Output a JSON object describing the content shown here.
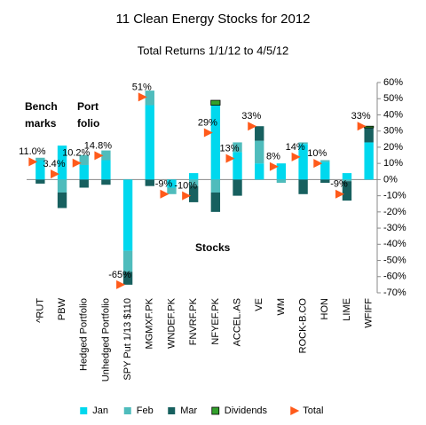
{
  "chart_data": {
    "type": "bar",
    "title": "11 Clean Energy Stocks for 2012",
    "subtitle": "Total Returns 1/1/12 to 4/5/12",
    "categories": [
      "^RUT",
      "PBW",
      "Hedged Portfolio",
      "Unhedged Portfolio",
      "SPY Put 1/13 $110",
      "MGMXF.PK",
      "WNDEF.PK",
      "FNVRF.PK",
      "NFYEF.PK",
      "ACCEL.AS",
      "VE",
      "WM",
      "ROCK-B.CO",
      "HON",
      "LIME",
      "WFIFF"
    ],
    "series": [
      {
        "name": "Jan",
        "color": "#00d8ee",
        "values": [
          12,
          21,
          9,
          12,
          -44,
          46,
          -5,
          4,
          46,
          17,
          10,
          10,
          22,
          11,
          4,
          23
        ]
      },
      {
        "name": "Feb",
        "color": "#4fbcbc",
        "values": [
          1.5,
          -8,
          6.2,
          6,
          -13,
          9,
          -4,
          -4,
          -8,
          6,
          14,
          -2,
          1,
          1,
          -1,
          0
        ]
      },
      {
        "name": "Mar",
        "color": "#17605f",
        "values": [
          -2.5,
          -9.6,
          -5,
          -3.2,
          -8,
          -4,
          0,
          -10,
          -12,
          -10,
          9,
          0,
          -9,
          -2,
          -12,
          9
        ]
      },
      {
        "name": "Dividends",
        "color": "#33a02c",
        "values": [
          0,
          0,
          0,
          0,
          0,
          0,
          0,
          0,
          3,
          0,
          0,
          0,
          0,
          0,
          0,
          1
        ]
      }
    ],
    "total": {
      "name": "Total",
      "color": "#ff5a1a",
      "values": [
        11.0,
        3.4,
        10.2,
        14.8,
        -65,
        51,
        -9,
        -10,
        29,
        13,
        33,
        8,
        14,
        10,
        -9,
        33
      ],
      "value_labels": [
        "11.0%",
        "3.4%",
        "10.2%",
        "14.8%",
        "-65%",
        "51%",
        "-9%",
        "-10%",
        "29%",
        "13%",
        "33%",
        "8%",
        "14%",
        "10%",
        "-9%",
        "33%"
      ]
    },
    "ylim": [
      -70,
      60
    ],
    "yticks": [
      {
        "value": 60,
        "label": "60%"
      },
      {
        "value": 50,
        "label": "50%"
      },
      {
        "value": 40,
        "label": "40%"
      },
      {
        "value": 30,
        "label": "30%"
      },
      {
        "value": 20,
        "label": "20%"
      },
      {
        "value": 10,
        "label": "10%"
      },
      {
        "value": 0,
        "label": "0%"
      },
      {
        "value": -10,
        "label": "-10%"
      },
      {
        "value": -20,
        "label": "-20%"
      },
      {
        "value": -30,
        "label": "-30%"
      },
      {
        "value": -40,
        "label": "-40%"
      },
      {
        "value": -50,
        "label": "-50%"
      },
      {
        "value": -60,
        "label": "-60%"
      },
      {
        "value": -70,
        "label": "-70%"
      }
    ],
    "annotations": [
      "Bench",
      "marks",
      "Port",
      "folio",
      "Stocks"
    ],
    "grid": false
  }
}
